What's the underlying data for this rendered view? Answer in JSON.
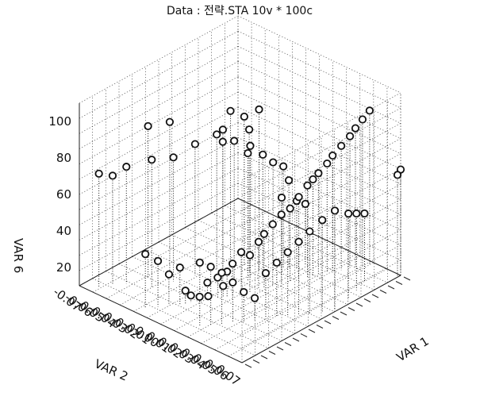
{
  "chart_data": {
    "type": "scatter",
    "title": "Data : 전략.STA  10v * 100c",
    "xlabel": "VAR 2",
    "ylabel": "VAR 1",
    "zlabel": "VAR 6",
    "x_ticks": [
      "-0.07",
      "-0.06",
      "-0.05",
      "-0.04",
      "-0.03",
      "-0.02",
      "-0.01",
      "0.00",
      "0.01",
      "0.02",
      "0.03",
      "0.04",
      "0.05",
      "0.06",
      "0.07"
    ],
    "z_ticks": [
      "20",
      "40",
      "60",
      "80",
      "100"
    ],
    "xlim": [
      -0.07,
      0.07
    ],
    "ylim": [
      0,
      1
    ],
    "zlim": [
      10,
      110
    ],
    "grid": true,
    "points": [
      {
        "x": -0.06,
        "y": 0.05,
        "z": 72
      },
      {
        "x": -0.055,
        "y": 0.1,
        "z": 70
      },
      {
        "x": -0.05,
        "y": 0.15,
        "z": 74
      },
      {
        "x": -0.045,
        "y": 0.25,
        "z": 93
      },
      {
        "x": -0.04,
        "y": 0.35,
        "z": 92
      },
      {
        "x": -0.035,
        "y": 0.2,
        "z": 80
      },
      {
        "x": -0.03,
        "y": 0.3,
        "z": 78
      },
      {
        "x": -0.025,
        "y": 0.4,
        "z": 82
      },
      {
        "x": -0.02,
        "y": 0.5,
        "z": 84
      },
      {
        "x": -0.015,
        "y": 0.55,
        "z": 96
      },
      {
        "x": -0.012,
        "y": 0.48,
        "z": 90
      },
      {
        "x": -0.01,
        "y": 0.6,
        "z": 92
      },
      {
        "x": -0.008,
        "y": 0.45,
        "z": 86
      },
      {
        "x": -0.005,
        "y": 0.5,
        "z": 85
      },
      {
        "x": -0.003,
        "y": 0.58,
        "z": 88
      },
      {
        "x": 0.0,
        "y": 0.62,
        "z": 98
      },
      {
        "x": 0.002,
        "y": 0.55,
        "z": 82
      },
      {
        "x": 0.004,
        "y": 0.52,
        "z": 80
      },
      {
        "x": 0.006,
        "y": 0.6,
        "z": 76
      },
      {
        "x": 0.008,
        "y": 0.65,
        "z": 70
      },
      {
        "x": 0.01,
        "y": 0.7,
        "z": 66
      },
      {
        "x": 0.012,
        "y": 0.72,
        "z": 58
      },
      {
        "x": 0.014,
        "y": 0.66,
        "z": 52
      },
      {
        "x": 0.016,
        "y": 0.74,
        "z": 47
      },
      {
        "x": 0.018,
        "y": 0.78,
        "z": 44
      },
      {
        "x": -0.006,
        "y": 0.2,
        "z": 17
      },
      {
        "x": -0.004,
        "y": 0.22,
        "z": 14
      },
      {
        "x": -0.002,
        "y": 0.26,
        "z": 12
      },
      {
        "x": 0.0,
        "y": 0.3,
        "z": 11
      },
      {
        "x": 0.002,
        "y": 0.28,
        "z": 20
      },
      {
        "x": 0.004,
        "y": 0.33,
        "z": 21
      },
      {
        "x": 0.006,
        "y": 0.35,
        "z": 16
      },
      {
        "x": 0.008,
        "y": 0.36,
        "z": 24
      },
      {
        "x": 0.01,
        "y": 0.38,
        "z": 28
      },
      {
        "x": 0.012,
        "y": 0.42,
        "z": 33
      },
      {
        "x": 0.014,
        "y": 0.46,
        "z": 30
      },
      {
        "x": 0.016,
        "y": 0.5,
        "z": 36
      },
      {
        "x": 0.018,
        "y": 0.52,
        "z": 40
      },
      {
        "x": 0.02,
        "y": 0.56,
        "z": 44
      },
      {
        "x": 0.022,
        "y": 0.6,
        "z": 48
      },
      {
        "x": 0.024,
        "y": 0.64,
        "z": 50
      },
      {
        "x": 0.026,
        "y": 0.68,
        "z": 55
      },
      {
        "x": 0.028,
        "y": 0.72,
        "z": 60
      },
      {
        "x": 0.03,
        "y": 0.74,
        "z": 63
      },
      {
        "x": 0.032,
        "y": 0.76,
        "z": 66
      },
      {
        "x": 0.034,
        "y": 0.8,
        "z": 70
      },
      {
        "x": 0.036,
        "y": 0.82,
        "z": 74
      },
      {
        "x": 0.038,
        "y": 0.86,
        "z": 78
      },
      {
        "x": 0.04,
        "y": 0.9,
        "z": 82
      },
      {
        "x": 0.042,
        "y": 0.92,
        "z": 86
      },
      {
        "x": 0.044,
        "y": 0.95,
        "z": 90
      },
      {
        "x": 0.046,
        "y": 0.98,
        "z": 94
      },
      {
        "x": -0.02,
        "y": 0.05,
        "z": 40
      },
      {
        "x": -0.016,
        "y": 0.1,
        "z": 35
      },
      {
        "x": -0.012,
        "y": 0.14,
        "z": 27
      },
      {
        "x": -0.008,
        "y": 0.18,
        "z": 30
      },
      {
        "x": 0.02,
        "y": 0.1,
        "z": 45
      },
      {
        "x": 0.024,
        "y": 0.14,
        "z": 42
      },
      {
        "x": 0.028,
        "y": 0.18,
        "z": 38
      },
      {
        "x": 0.032,
        "y": 0.22,
        "z": 32
      },
      {
        "x": 0.036,
        "y": 0.26,
        "z": 26
      },
      {
        "x": 0.04,
        "y": 0.3,
        "z": 22
      },
      {
        "x": 0.044,
        "y": 0.34,
        "z": 35
      },
      {
        "x": 0.048,
        "y": 0.38,
        "z": 40
      },
      {
        "x": 0.052,
        "y": 0.42,
        "z": 45
      },
      {
        "x": 0.056,
        "y": 0.46,
        "z": 50
      },
      {
        "x": 0.06,
        "y": 0.5,
        "z": 55
      },
      {
        "x": 0.064,
        "y": 0.55,
        "z": 60
      },
      {
        "x": 0.068,
        "y": 0.6,
        "z": 64
      },
      {
        "x": 0.066,
        "y": 0.7,
        "z": 57
      },
      {
        "x": 0.062,
        "y": 0.78,
        "z": 52
      },
      {
        "x": 0.058,
        "y": 0.86,
        "z": 47
      },
      {
        "x": 0.07,
        "y": 0.98,
        "z": 66
      },
      {
        "x": 0.07,
        "y": 1.0,
        "z": 68
      }
    ]
  }
}
